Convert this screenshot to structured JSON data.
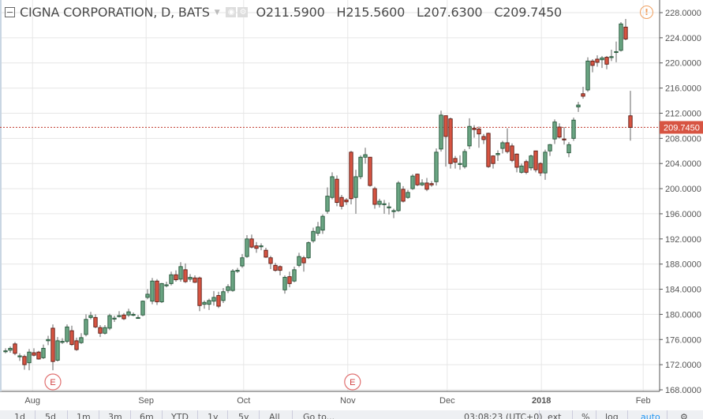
{
  "header": {
    "symbol_title": "CIGNA CORPORATION, D, BATS",
    "open": "O211.5900",
    "high": "H215.5600",
    "low": "L207.6300",
    "close": "C209.7450"
  },
  "toolbar": {
    "ranges": [
      "1d",
      "5d",
      "1m",
      "3m",
      "6m",
      "YTD",
      "1y",
      "5y",
      "All"
    ],
    "goto": "Go to...",
    "time": "03:08:23 (UTC+0)",
    "ext": "ext",
    "percent": "%",
    "log": "log",
    "auto": "auto",
    "settings_icon": "gear-icon"
  },
  "colors": {
    "up_fill": "#6ba583",
    "up_border": "#225437",
    "down_fill": "#d75442",
    "down_border": "#5b1a13",
    "last_price": "#c0392b",
    "grid": "#e6e6e6",
    "alert": "#f0a060",
    "auto": "#2196f3"
  },
  "chart_data": {
    "type": "candlestick",
    "ylim": [
      166.5,
      229.5
    ],
    "y_ticks": [
      "168.0000",
      "172.0000",
      "176.0000",
      "180.0000",
      "184.0000",
      "188.0000",
      "192.0000",
      "196.0000",
      "200.0000",
      "204.0000",
      "208.0000",
      "212.0000",
      "216.0000",
      "220.0000",
      "224.0000",
      "228.0000"
    ],
    "x_ticks": [
      {
        "label": "Aug",
        "index": 5.7
      },
      {
        "label": "Sep",
        "index": 29.7
      },
      {
        "label": "Oct",
        "index": 50.3
      },
      {
        "label": "Nov",
        "index": 72.3
      },
      {
        "label": "Dec",
        "index": 93.3
      },
      {
        "label": "2018",
        "index": 113.2
      },
      {
        "label": "Feb",
        "index": 134.7
      }
    ],
    "last_price": 209.745,
    "last_price_label": "209.7450",
    "earnings_markers": [
      {
        "label": "E",
        "index": 10
      },
      {
        "label": "E",
        "index": 73.3
      }
    ],
    "ohlc": [
      [
        174.2,
        174.6,
        173.8,
        174.2
      ],
      [
        174.3,
        174.9,
        173.9,
        174.6
      ],
      [
        175.3,
        175.6,
        173.5,
        173.8
      ],
      [
        173.4,
        173.8,
        172.6,
        173.4
      ],
      [
        173.3,
        173.6,
        171.2,
        172.0
      ],
      [
        172.3,
        174.5,
        171.1,
        174.0
      ],
      [
        173.9,
        174.6,
        173.3,
        173.5
      ],
      [
        174.0,
        174.2,
        172.8,
        172.9
      ],
      [
        173.1,
        175.2,
        172.9,
        174.6
      ],
      [
        175.8,
        176.6,
        175.1,
        176.0
      ],
      [
        177.8,
        178.4,
        171.1,
        172.5
      ],
      [
        172.7,
        176.4,
        172.5,
        175.8
      ],
      [
        175.7,
        176.2,
        175.3,
        175.7
      ],
      [
        175.7,
        178.4,
        175.4,
        178.0
      ],
      [
        177.4,
        178.2,
        175.0,
        175.2
      ],
      [
        175.8,
        176.3,
        174.2,
        174.4
      ],
      [
        175.5,
        177.0,
        175.3,
        176.3
      ],
      [
        176.8,
        180.0,
        176.5,
        179.2
      ],
      [
        179.5,
        180.4,
        179.2,
        179.8
      ],
      [
        179.5,
        180.0,
        177.8,
        178.0
      ],
      [
        177.9,
        178.3,
        176.4,
        177.0
      ],
      [
        177.0,
        178.3,
        176.8,
        177.9
      ],
      [
        177.8,
        180.1,
        177.5,
        179.8
      ],
      [
        179.4,
        179.8,
        178.8,
        179.4
      ],
      [
        179.8,
        180.5,
        179.5,
        179.8
      ],
      [
        179.9,
        180.2,
        179.1,
        179.3
      ],
      [
        179.9,
        180.9,
        179.6,
        180.4
      ],
      [
        179.9,
        180.3,
        179.7,
        180.0
      ],
      [
        179.5,
        179.9,
        179.4,
        179.5
      ],
      [
        179.9,
        182.2,
        179.7,
        182.1
      ],
      [
        182.7,
        184.0,
        182.4,
        183.2
      ],
      [
        182.1,
        185.8,
        181.6,
        185.3
      ],
      [
        185.3,
        185.6,
        181.5,
        182.0
      ],
      [
        182.0,
        185.0,
        181.8,
        184.9
      ],
      [
        184.7,
        185.2,
        184.3,
        184.7
      ],
      [
        184.9,
        186.8,
        184.6,
        186.3
      ],
      [
        186.3,
        187.0,
        185.2,
        185.5
      ],
      [
        185.6,
        188.3,
        185.2,
        187.6
      ],
      [
        187.1,
        188.1,
        185.0,
        185.2
      ],
      [
        185.6,
        186.4,
        185.2,
        185.9
      ],
      [
        185.8,
        186.2,
        185.0,
        185.1
      ],
      [
        185.8,
        186.0,
        180.5,
        181.4
      ],
      [
        181.6,
        182.2,
        180.9,
        181.9
      ],
      [
        181.6,
        182.5,
        180.7,
        182.2
      ],
      [
        182.1,
        183.7,
        181.4,
        182.7
      ],
      [
        183.0,
        183.6,
        181.0,
        181.3
      ],
      [
        182.2,
        184.2,
        181.8,
        183.6
      ],
      [
        183.8,
        184.8,
        183.4,
        184.4
      ],
      [
        183.8,
        187.2,
        183.6,
        186.9
      ],
      [
        187.0,
        187.4,
        186.6,
        187.0
      ],
      [
        187.7,
        189.6,
        187.4,
        189.0
      ],
      [
        189.2,
        192.6,
        189.0,
        192.0
      ],
      [
        192.0,
        192.7,
        190.5,
        190.7
      ],
      [
        190.9,
        191.5,
        189.8,
        190.5
      ],
      [
        190.9,
        191.3,
        190.2,
        190.9
      ],
      [
        190.2,
        190.6,
        189.0,
        189.1
      ],
      [
        189.0,
        189.3,
        187.2,
        188.1
      ],
      [
        187.8,
        188.2,
        186.8,
        187.0
      ],
      [
        187.6,
        187.8,
        186.2,
        187.0
      ],
      [
        183.9,
        186.2,
        183.3,
        185.9
      ],
      [
        186.0,
        186.8,
        184.3,
        184.9
      ],
      [
        185.3,
        187.6,
        185.1,
        187.1
      ],
      [
        187.8,
        189.8,
        187.5,
        189.2
      ],
      [
        189.0,
        189.3,
        186.8,
        188.2
      ],
      [
        189.0,
        191.6,
        188.8,
        191.4
      ],
      [
        191.7,
        193.8,
        191.4,
        193.2
      ],
      [
        192.9,
        194.7,
        192.5,
        193.9
      ],
      [
        193.4,
        195.9,
        192.8,
        195.6
      ],
      [
        196.4,
        200.2,
        196.0,
        198.8
      ],
      [
        198.6,
        202.6,
        198.3,
        201.9
      ],
      [
        201.5,
        202.1,
        197.2,
        197.8
      ],
      [
        198.6,
        199.0,
        196.7,
        197.2
      ],
      [
        198.2,
        198.5,
        197.4,
        197.9
      ],
      [
        205.8,
        206.0,
        197.5,
        198.4
      ],
      [
        198.6,
        203.0,
        196.0,
        201.9
      ],
      [
        201.9,
        205.3,
        201.5,
        205.0
      ],
      [
        205.0,
        206.5,
        204.0,
        205.4
      ],
      [
        205.0,
        205.0,
        200.3,
        200.5
      ],
      [
        200.0,
        200.3,
        196.8,
        197.5
      ],
      [
        197.5,
        198.4,
        197.0,
        198.0
      ],
      [
        197.6,
        198.2,
        196.0,
        197.6
      ],
      [
        197.1,
        197.8,
        195.9,
        197.1
      ],
      [
        196.5,
        196.8,
        195.3,
        196.5
      ],
      [
        196.5,
        201.2,
        196.3,
        200.9
      ],
      [
        199.9,
        200.4,
        197.8,
        198.0
      ],
      [
        198.6,
        199.8,
        198.4,
        199.4
      ],
      [
        200.0,
        202.3,
        199.8,
        202.0
      ],
      [
        202.3,
        202.4,
        200.4,
        200.6
      ],
      [
        200.6,
        201.5,
        200.4,
        200.9
      ],
      [
        200.9,
        201.7,
        199.6,
        199.9
      ],
      [
        200.8,
        201.2,
        200.3,
        200.6
      ],
      [
        201.1,
        206.4,
        200.5,
        205.8
      ],
      [
        206.3,
        212.4,
        205.9,
        211.7
      ],
      [
        211.6,
        211.6,
        203.5,
        208.3
      ],
      [
        211.1,
        211.3,
        203.2,
        204.0
      ],
      [
        204.8,
        205.2,
        203.2,
        204.2
      ],
      [
        204.0,
        205.3,
        203.0,
        204.0
      ],
      [
        203.5,
        206.3,
        203.2,
        205.9
      ],
      [
        206.8,
        211.2,
        206.3,
        209.9
      ],
      [
        209.6,
        210.1,
        208.1,
        209.4
      ],
      [
        209.5,
        209.9,
        206.5,
        208.7
      ],
      [
        208.3,
        208.7,
        207.1,
        207.8
      ],
      [
        208.8,
        208.9,
        203.3,
        203.5
      ],
      [
        205.2,
        205.3,
        203.2,
        204.0
      ],
      [
        205.4,
        206.1,
        204.4,
        205.6
      ],
      [
        206.4,
        207.6,
        205.6,
        207.3
      ],
      [
        207.3,
        209.6,
        205.6,
        205.9
      ],
      [
        206.8,
        207.2,
        204.2,
        204.5
      ],
      [
        205.5,
        205.6,
        202.6,
        203.4
      ],
      [
        202.6,
        204.0,
        202.4,
        203.6
      ],
      [
        204.3,
        204.6,
        202.3,
        202.6
      ],
      [
        203.3,
        205.4,
        202.9,
        205.2
      ],
      [
        206.0,
        206.0,
        202.6,
        203.0
      ],
      [
        204.0,
        204.2,
        202.0,
        202.5
      ],
      [
        202.5,
        206.2,
        201.4,
        205.8
      ],
      [
        206.0,
        207.1,
        205.2,
        207.0
      ],
      [
        207.9,
        211.0,
        207.1,
        210.6
      ],
      [
        209.8,
        210.4,
        208.0,
        208.2
      ],
      [
        207.9,
        209.8,
        207.0,
        207.8
      ],
      [
        205.7,
        207.4,
        205.0,
        207.0
      ],
      [
        208.0,
        211.3,
        207.6,
        210.9
      ],
      [
        213.0,
        213.8,
        212.2,
        213.3
      ],
      [
        215.1,
        216.2,
        214.3,
        214.7
      ],
      [
        215.7,
        220.9,
        215.4,
        220.3
      ],
      [
        220.3,
        220.6,
        218.5,
        219.6
      ],
      [
        220.6,
        221.2,
        219.4,
        220.1
      ],
      [
        220.5,
        221.1,
        219.2,
        220.8
      ],
      [
        220.9,
        221.1,
        219.0,
        219.8
      ],
      [
        221.0,
        222.1,
        220.3,
        221.0
      ],
      [
        221.8,
        223.4,
        220.1,
        221.8
      ],
      [
        222.0,
        226.5,
        221.8,
        226.2
      ],
      [
        225.7,
        227.0,
        223.6,
        223.8
      ],
      [
        211.59,
        215.56,
        207.63,
        209.745
      ]
    ]
  }
}
